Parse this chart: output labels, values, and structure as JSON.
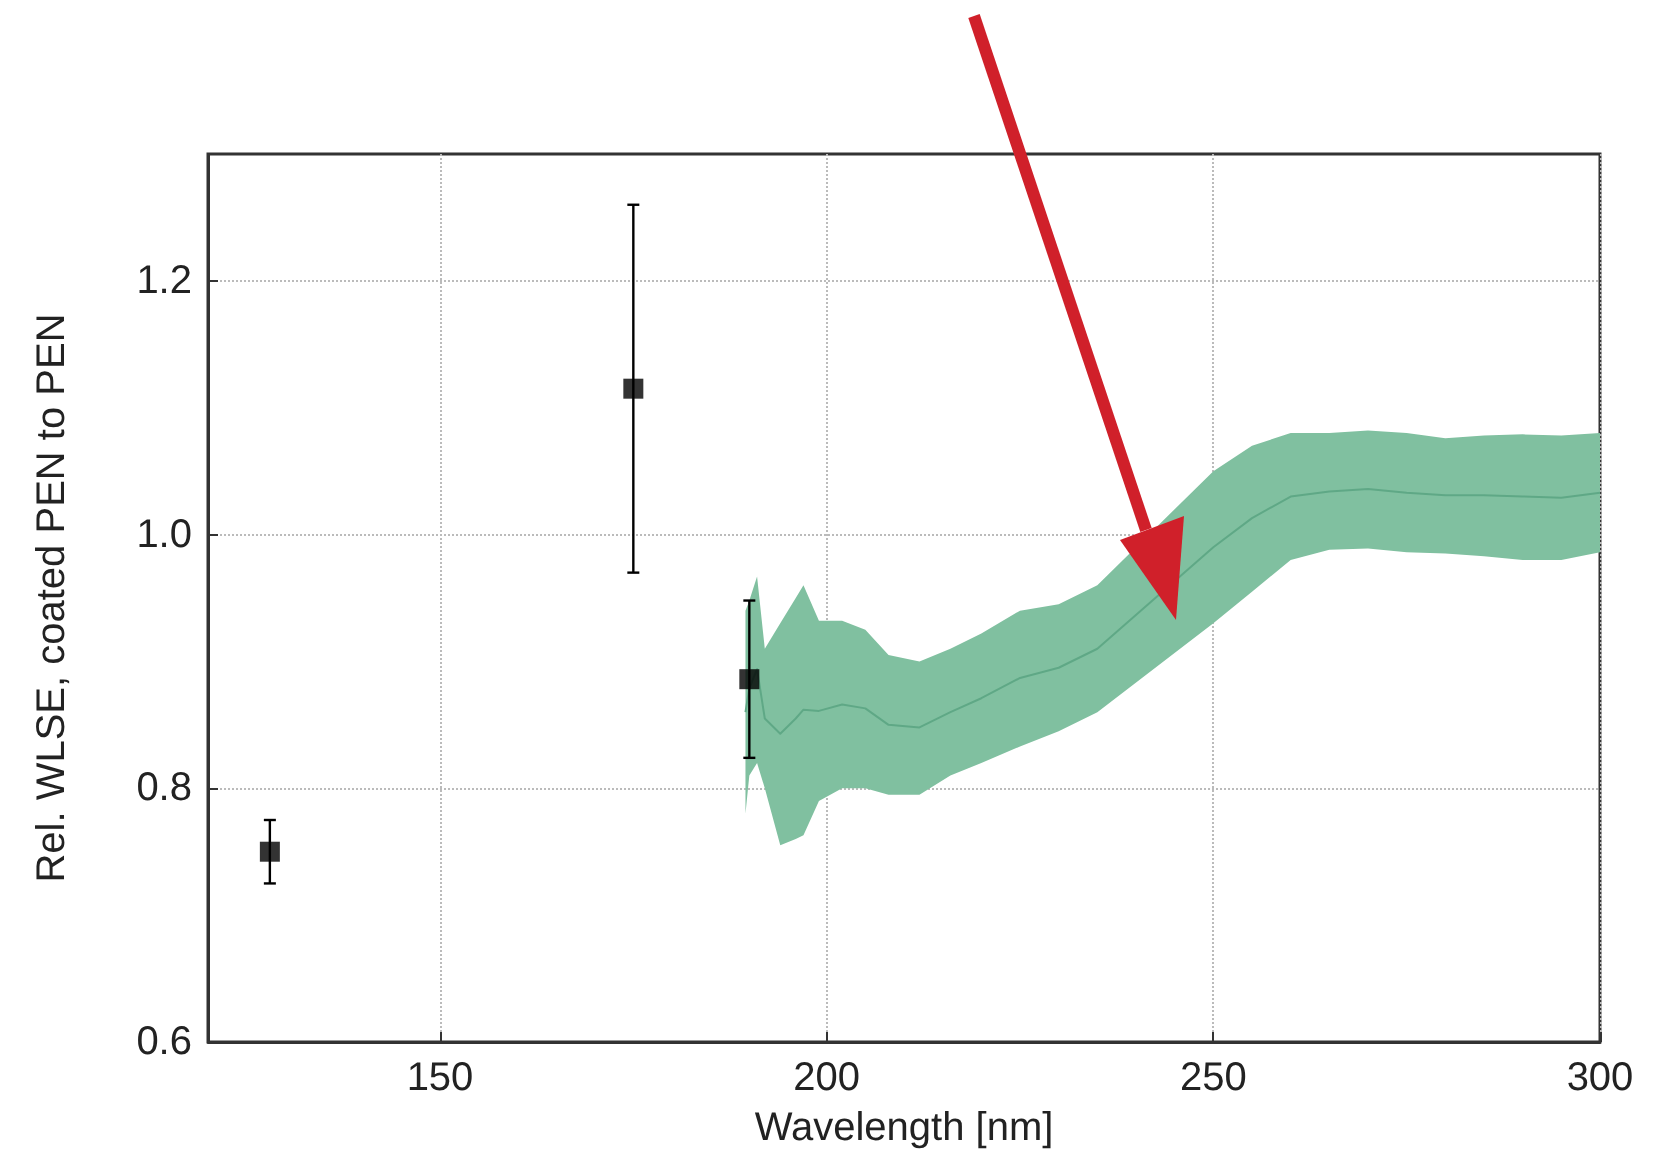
{
  "chart_data": {
    "type": "scatter",
    "xlabel": "Wavelength [nm]",
    "ylabel": "Rel. WLSE, coated PEN to PEN",
    "xlim": [
      120,
      300
    ],
    "xticks": [
      150,
      200,
      250,
      300
    ],
    "ylim": [
      0.6,
      1.3
    ],
    "yticks": [
      {
        "value": 0.6,
        "label": "0.6"
      },
      {
        "value": 0.8,
        "label": "0.8"
      },
      {
        "value": 1,
        "label": "1.0"
      },
      {
        "value": 1.2,
        "label": "1.2"
      }
    ],
    "grid": true,
    "series": [
      {
        "type": "line",
        "marker": "none",
        "color": "#5fa886",
        "x": [
          189.5,
          190,
          191,
          192,
          194,
          196,
          197,
          199,
          202,
          205,
          208,
          212,
          216,
          220,
          225,
          230,
          235,
          250,
          255,
          260,
          265,
          270,
          275,
          280,
          285,
          290,
          295,
          300
        ],
        "values": [
          0.86,
          0.879,
          0.894,
          0.855,
          0.843,
          0.855,
          0.862,
          0.861,
          0.866,
          0.863,
          0.85,
          0.848,
          0.86,
          0.871,
          0.887,
          0.895,
          0.91,
          0.99,
          1.013,
          1.03,
          1.034,
          1.036,
          1.033,
          1.031,
          1.031,
          1.03,
          1.029,
          1.033
        ],
        "upper": [
          0.94,
          0.948,
          0.967,
          0.91,
          0.93,
          0.95,
          0.96,
          0.932,
          0.932,
          0.925,
          0.905,
          0.9,
          0.91,
          0.922,
          0.94,
          0.945,
          0.96,
          1.05,
          1.07,
          1.08,
          1.08,
          1.082,
          1.08,
          1.076,
          1.078,
          1.079,
          1.078,
          1.08
        ],
        "lower": [
          0.78,
          0.81,
          0.82,
          0.8,
          0.755,
          0.76,
          0.763,
          0.79,
          0.8,
          0.8,
          0.795,
          0.795,
          0.81,
          0.82,
          0.833,
          0.845,
          0.86,
          0.93,
          0.955,
          0.98,
          0.988,
          0.989,
          0.986,
          0.985,
          0.983,
          0.98,
          0.98,
          0.986
        ]
      },
      {
        "marker": "square",
        "color": "#000000",
        "x": [
          128,
          175,
          190
        ],
        "values": [
          0.75,
          1.115,
          0.886
        ],
        "errors": [
          0.025,
          0.145,
          0.062
        ]
      }
    ]
  }
}
